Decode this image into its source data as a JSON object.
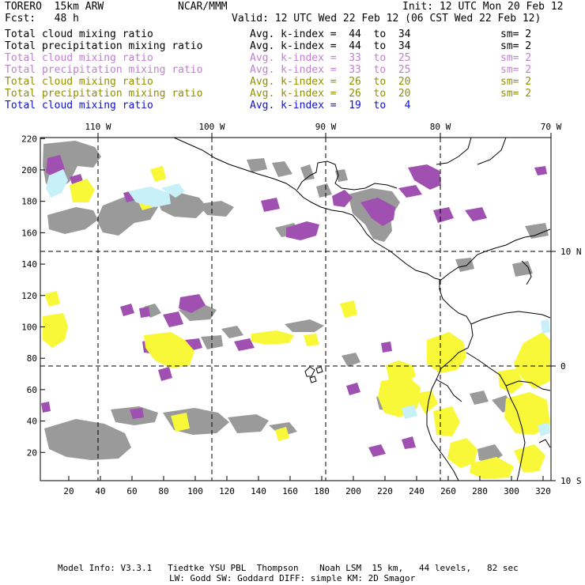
{
  "header": {
    "model": "TORERO  15km ARW",
    "center": "NCAR/MMM",
    "init": "Init: 12 UTC Mon 20 Feb 12",
    "forecast": "Fcst:   48 h",
    "valid": "Valid: 12 UTC Wed 22 Feb 12 (06 CST Wed 22 Feb 12)"
  },
  "variables": [
    {
      "name": "Total cloud mixing ratio",
      "avg": "Avg. k-index =  44  to  34",
      "sm": "sm= 2",
      "color": "#000000"
    },
    {
      "name": "Total precipitation mixing ratio",
      "avg": "Avg. k-index =  44  to  34",
      "sm": "sm= 2",
      "color": "#000000"
    },
    {
      "name": "Total cloud mixing ratio",
      "avg": "Avg. k-index =  33  to  25",
      "sm": "sm= 2",
      "color": "#c080d0"
    },
    {
      "name": "Total precipitation mixing ratio",
      "avg": "Avg. k-index =  33  to  25",
      "sm": "sm= 2",
      "color": "#c080d0"
    },
    {
      "name": "Total cloud mixing ratio",
      "avg": "Avg. k-index =  26  to  20",
      "sm": "sm= 2",
      "color": "#909000"
    },
    {
      "name": "Total precipitation mixing ratio",
      "avg": "Avg. k-index =  26  to  20",
      "sm": "sm= 2",
      "color": "#909000"
    },
    {
      "name": "Total cloud mixing ratio",
      "avg": "Avg. k-index =  19  to   4",
      "sm": "",
      "color": "#1010d0"
    }
  ],
  "map": {
    "x_ticks": [
      "20",
      "40",
      "60",
      "80",
      "100",
      "120",
      "140",
      "160",
      "180",
      "200",
      "220",
      "240",
      "260",
      "280",
      "300",
      "320"
    ],
    "y_ticks": [
      "20",
      "40",
      "60",
      "80",
      "100",
      "120",
      "140",
      "160",
      "180",
      "200",
      "220"
    ],
    "lon_labels": [
      "110 W",
      "100 W",
      "90 W",
      "80 W",
      "70 W"
    ],
    "lat_labels": [
      "10 N",
      "0",
      "10 S"
    ],
    "colors": {
      "gray": "#9a9a9a",
      "purple": "#a050b0",
      "yellow": "#f8f838",
      "cyan": "#c8f0f8",
      "coast": "#000000"
    }
  },
  "footer": {
    "line1": "Model Info: V3.3.1   Tiedtke YSU PBL  Thompson    Noah LSM  15 km,   44 levels,   82 sec",
    "line2": "LW: Godd SW: Goddard DIFF: simple KM: 2D Smagor"
  }
}
